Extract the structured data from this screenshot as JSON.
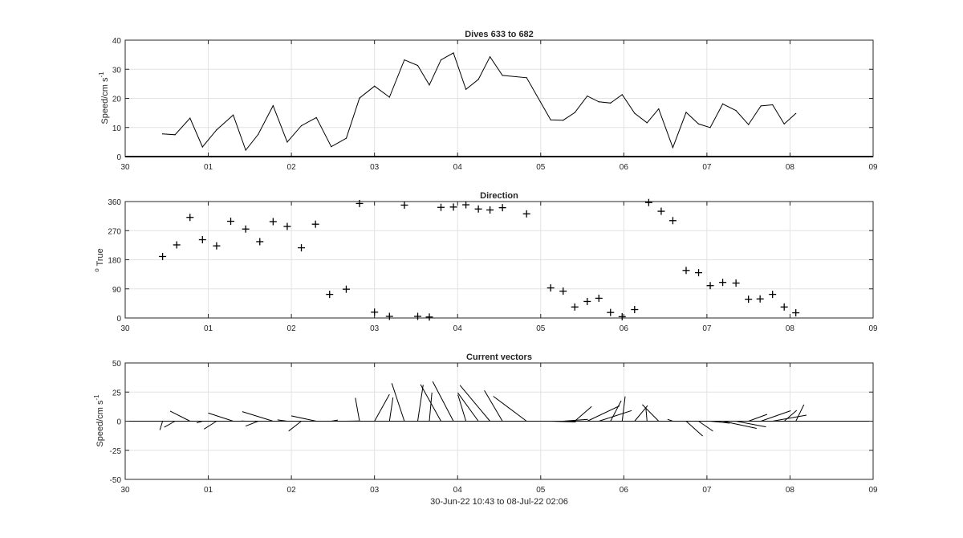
{
  "figure": {
    "footer": "30-Jun-22 10:43 to 08-Jul-22 02:06"
  },
  "chart_data": [
    {
      "type": "line",
      "title": "Dives 633 to 682",
      "ylabel": "Speed/cm s",
      "ylabel_superscript": "-1",
      "xlim": [
        0,
        9
      ],
      "ylim": [
        0,
        40
      ],
      "x_ticks": [
        0,
        1,
        2,
        3,
        4,
        5,
        6,
        7,
        8,
        9
      ],
      "x_tick_labels": [
        "30",
        "01",
        "02",
        "03",
        "04",
        "05",
        "06",
        "07",
        "08",
        "09"
      ],
      "y_ticks": [
        0,
        10,
        20,
        30,
        40
      ],
      "grid": true,
      "x": [
        0.45,
        0.6,
        0.78,
        0.93,
        1.1,
        1.3,
        1.45,
        1.6,
        1.78,
        1.95,
        2.12,
        2.3,
        2.48,
        2.66,
        2.82,
        3.0,
        3.18,
        3.36,
        3.52,
        3.66,
        3.8,
        3.95,
        4.1,
        4.25,
        4.39,
        4.54,
        4.83,
        5.12,
        5.27,
        5.41,
        5.56,
        5.7,
        5.84,
        5.98,
        6.13,
        6.28,
        6.42,
        6.59,
        6.75,
        6.9,
        7.04,
        7.19,
        7.35,
        7.5,
        7.65,
        7.79,
        7.93,
        8.07
      ],
      "y": [
        7.8,
        7.5,
        13.2,
        3.3,
        9.2,
        14.3,
        2.2,
        7.6,
        17.5,
        5.0,
        10.6,
        13.4,
        3.4,
        6.3,
        20.1,
        24.2,
        20.4,
        33.2,
        31.3,
        24.6,
        33.2,
        35.6,
        23.1,
        26.5,
        34.3,
        27.9,
        27.1,
        12.6,
        12.5,
        15.1,
        20.8,
        18.8,
        18.4,
        21.3,
        14.9,
        11.6,
        16.4,
        3.1,
        15.2,
        11.2,
        10.0,
        18.1,
        15.8,
        11.0,
        17.4,
        17.8,
        11.2,
        14.8
      ]
    },
    {
      "type": "scatter",
      "title": "Direction",
      "ylabel": "True",
      "ylabel_superscript": "o",
      "xlim": [
        0,
        9
      ],
      "ylim": [
        0,
        360
      ],
      "x_ticks": [
        0,
        1,
        2,
        3,
        4,
        5,
        6,
        7,
        8,
        9
      ],
      "x_tick_labels": [
        "30",
        "01",
        "02",
        "03",
        "04",
        "05",
        "06",
        "07",
        "08",
        "09"
      ],
      "y_ticks": [
        0,
        90,
        180,
        270,
        360
      ],
      "grid": true,
      "marker": "+",
      "x": [
        0.45,
        0.62,
        0.78,
        0.93,
        1.1,
        1.27,
        1.45,
        1.62,
        1.78,
        1.95,
        2.12,
        2.29,
        2.46,
        2.66,
        2.82,
        3.0,
        3.18,
        3.36,
        3.52,
        3.66,
        3.8,
        3.95,
        4.1,
        4.25,
        4.39,
        4.54,
        4.83,
        5.12,
        5.27,
        5.41,
        5.56,
        5.7,
        5.84,
        5.98,
        6.13,
        6.3,
        6.45,
        6.59,
        6.75,
        6.9,
        7.04,
        7.19,
        7.35,
        7.5,
        7.64,
        7.79,
        7.93,
        8.07
      ],
      "y": [
        190,
        226,
        311,
        242,
        223,
        299,
        275,
        236,
        298,
        283,
        217,
        290,
        73,
        89,
        354,
        18,
        5,
        349,
        5,
        3,
        342,
        343,
        350,
        337,
        334,
        341,
        322,
        93,
        83,
        34,
        51,
        61,
        17,
        4,
        26,
        357,
        330,
        301,
        147,
        140,
        100,
        110,
        108,
        58,
        59,
        73,
        34,
        16
      ]
    },
    {
      "type": "line",
      "title": "Current vectors",
      "subtype": "vector-stick",
      "ylabel": "Speed/cm s",
      "ylabel_superscript": "-1",
      "xlabel": "30-Jun-22 10:43 to 08-Jul-22 02:06",
      "xlim": [
        0,
        9
      ],
      "ylim": [
        -50,
        50
      ],
      "x_ticks": [
        0,
        1,
        2,
        3,
        4,
        5,
        6,
        7,
        8,
        9
      ],
      "x_tick_labels": [
        "30",
        "01",
        "02",
        "03",
        "04",
        "05",
        "06",
        "07",
        "08",
        "09"
      ],
      "y_ticks": [
        -50,
        -25,
        0,
        25,
        50
      ],
      "y_tick_labels": [
        "-50",
        "-25",
        "0",
        "25",
        "50"
      ],
      "grid": true,
      "baseline": 0
    }
  ]
}
